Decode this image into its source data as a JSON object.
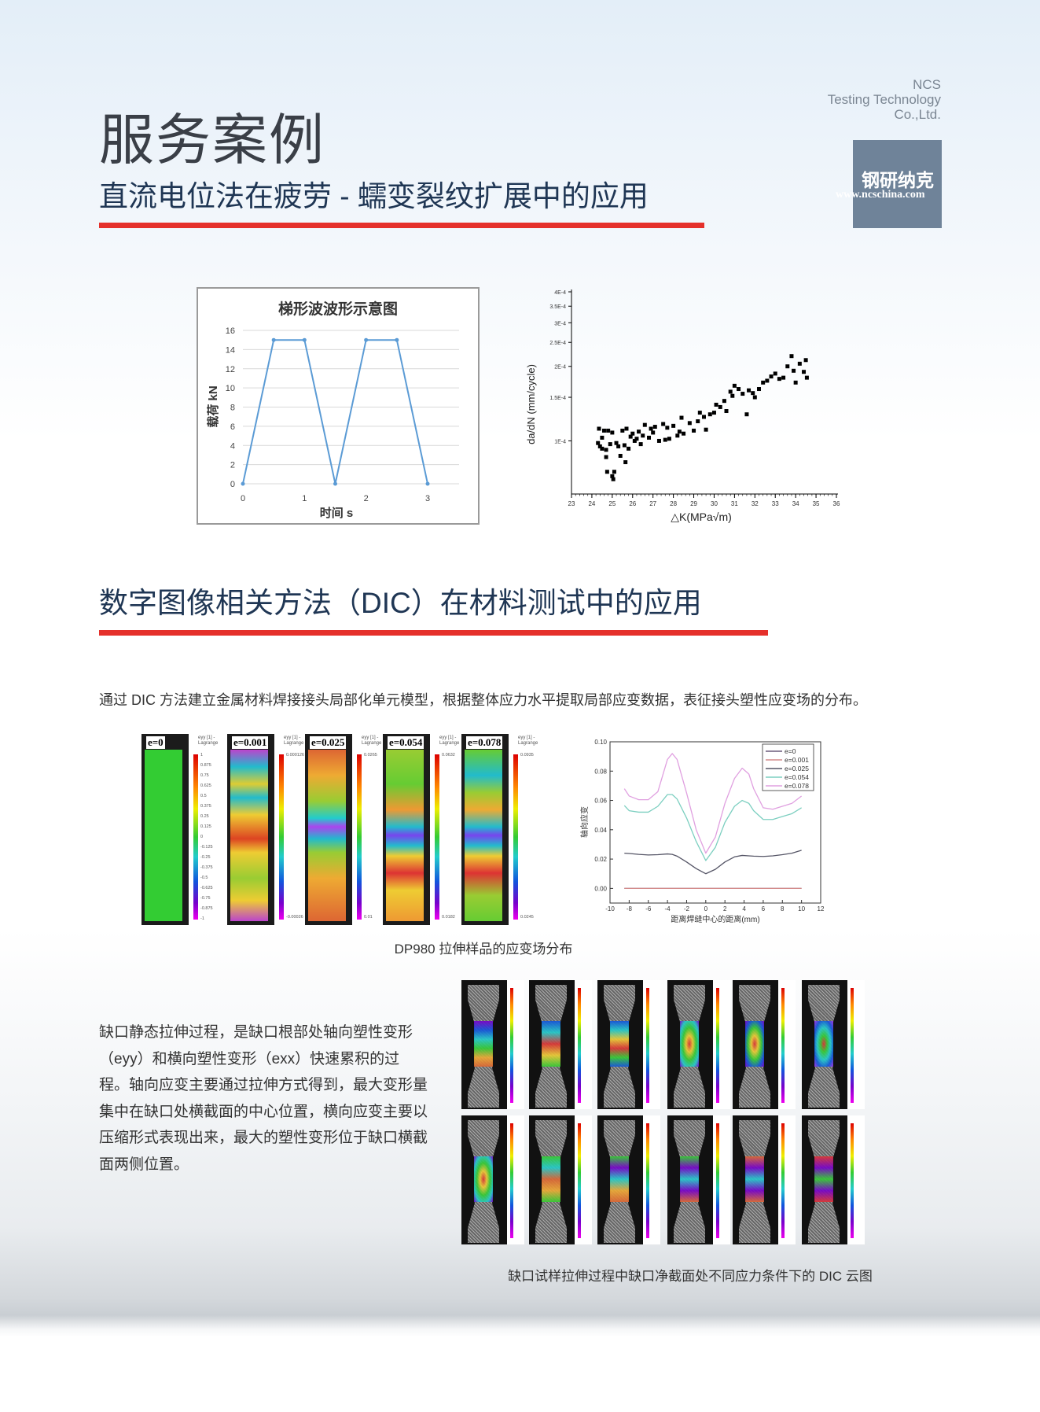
{
  "header": {
    "title": "服务案例",
    "company_lines": [
      "NCS",
      "Testing Technology",
      "Co.,Ltd."
    ],
    "logo": {
      "name_cn": "钢研纳克",
      "url": "www.ncschina.com"
    }
  },
  "section1": {
    "heading": "直流电位法在疲劳 - 蠕变裂纹扩展中的应用"
  },
  "section2": {
    "heading": "数字图像相关方法（DIC）在材料测试中的应用",
    "intro": "通过 DIC 方法建立金属材料焊接接头局部化单元模型，根据整体应力水平提取局部应变数据，表征接头塑性应变场的分布。",
    "dic_caption": "DP980 拉伸样品的应变场分布",
    "dic_panels": [
      {
        "label": "e=0",
        "legend_title": "eyy [1] - Lagrange",
        "legend_ticks": [
          "1",
          "0.875",
          "0.75",
          "0.625",
          "0.5",
          "0.375",
          "0.25",
          "0.125",
          "0",
          "-0.125",
          "-0.25",
          "-0.375",
          "-0.5",
          "-0.625",
          "-0.75",
          "-0.875",
          "-1"
        ]
      },
      {
        "label": "e=0.001",
        "legend_title": "eyy [1] - Lagrange",
        "legend_max": "0.000126",
        "legend_min": "-0.00026"
      },
      {
        "label": "e=0.025",
        "legend_title": "eyy [1] - Lagrange",
        "legend_max": "0.0265",
        "legend_min": "0.01"
      },
      {
        "label": "e=0.054",
        "legend_title": "eyy [1] - Lagrange",
        "legend_max": "0.0632",
        "legend_min": "0.0182"
      },
      {
        "label": "e=0.078",
        "legend_title": "eyy [1] - Lagrange",
        "legend_max": "0.0935",
        "legend_min": "0.0245"
      }
    ],
    "notch_text": "缺口静态拉伸过程，是缺口根部处轴向塑性变形（eyy）和横向塑性变形（exx）快速累积的过程。轴向应变主要通过拉伸方式得到，最大变形量集中在缺口处横截面的中心位置，横向应变主要以压缩形式表现出来，最大的塑性变形位于缺口横截面两侧位置。",
    "notch_caption": "缺口试样拉伸过程中缺口净截面处不同应力条件下的 DIC 云图"
  },
  "chart_data": [
    {
      "type": "line",
      "title": "梯形波波形示意图",
      "xlabel": "时间 s",
      "ylabel": "载荷 kN",
      "x": [
        0,
        0.5,
        1,
        1.5,
        2,
        2.5,
        3
      ],
      "values": [
        0,
        15,
        15,
        0,
        15,
        15,
        0
      ],
      "xlim": [
        0,
        3.4
      ],
      "ylim": [
        0,
        16
      ],
      "xticks": [
        0,
        1,
        2,
        3
      ],
      "yticks": [
        0,
        2,
        4,
        6,
        8,
        10,
        12,
        14,
        16
      ],
      "grid": true,
      "color": "#5b9bd5"
    },
    {
      "type": "scatter",
      "xlabel": "△K(MPa√m)",
      "ylabel": "da/dN (mm/cycle)",
      "xlim": [
        23,
        36
      ],
      "ylim": [
        6.1e-05,
        0.0004
      ],
      "yscale": "log",
      "xticks": [
        23,
        24,
        25,
        26,
        27,
        28,
        29,
        30,
        31,
        32,
        33,
        34,
        35,
        36
      ],
      "yticks": [
        {
          "v": 0.0001,
          "label": "1E-4"
        },
        {
          "v": 0.00015,
          "label": "1.5E-4"
        },
        {
          "v": 0.0002,
          "label": "2E-4"
        },
        {
          "v": 0.00025,
          "label": "2.5E-4"
        },
        {
          "v": 0.0003,
          "label": "3E-4"
        },
        {
          "v": 0.00035,
          "label": "3.5E-4"
        },
        {
          "v": 0.0004,
          "label": "4E-4"
        }
      ],
      "color": "#000000",
      "points": [
        [
          24.3,
          9.8e-05
        ],
        [
          24.35,
          0.000112
        ],
        [
          24.4,
          9.5e-05
        ],
        [
          24.5,
          0.000103
        ],
        [
          24.5,
          9.3e-05
        ],
        [
          24.6,
          0.00011
        ],
        [
          24.7,
          9.2e-05
        ],
        [
          24.7,
          8.6e-05
        ],
        [
          24.75,
          7.5e-05
        ],
        [
          24.8,
          0.00011
        ],
        [
          24.9,
          9.7e-05
        ],
        [
          25.0,
          7.2e-05
        ],
        [
          25.05,
          7e-05
        ],
        [
          25.1,
          7.5e-05
        ],
        [
          25.0,
          0.000108
        ],
        [
          25.2,
          9.8e-05
        ],
        [
          25.3,
          9.5e-05
        ],
        [
          25.4,
          8.7e-05
        ],
        [
          25.5,
          0.00011
        ],
        [
          25.6,
          9.6e-05
        ],
        [
          25.65,
          8.2e-05
        ],
        [
          25.7,
          0.000112
        ],
        [
          25.8,
          9.3e-05
        ],
        [
          25.9,
          0.000104
        ],
        [
          26.0,
          0.000107
        ],
        [
          26.1,
          0.0001
        ],
        [
          26.2,
          0.000102
        ],
        [
          26.3,
          0.000109
        ],
        [
          26.4,
          9.7e-05
        ],
        [
          26.5,
          0.000105
        ],
        [
          26.6,
          0.000116
        ],
        [
          26.8,
          0.000103
        ],
        [
          26.9,
          0.000112
        ],
        [
          27.0,
          0.000108
        ],
        [
          27.1,
          0.000114
        ],
        [
          27.3,
          0.0001
        ],
        [
          27.5,
          0.000117
        ],
        [
          27.6,
          0.000101
        ],
        [
          27.7,
          0.000113
        ],
        [
          27.8,
          0.000102
        ],
        [
          28.0,
          0.000115
        ],
        [
          28.2,
          0.000105
        ],
        [
          28.3,
          0.000109
        ],
        [
          28.4,
          0.000124
        ],
        [
          28.5,
          0.000107
        ],
        [
          28.8,
          0.000118
        ],
        [
          29.0,
          0.00011
        ],
        [
          29.2,
          0.00012
        ],
        [
          29.3,
          0.00013
        ],
        [
          29.5,
          0.000125
        ],
        [
          29.6,
          0.000111
        ],
        [
          29.8,
          0.000128
        ],
        [
          30.0,
          0.00013
        ],
        [
          30.1,
          0.00014
        ],
        [
          30.3,
          0.000137
        ],
        [
          30.5,
          0.000145
        ],
        [
          30.6,
          0.000132
        ],
        [
          30.8,
          0.000158
        ],
        [
          30.9,
          0.000152
        ],
        [
          31.0,
          0.000167
        ],
        [
          31.2,
          0.000162
        ],
        [
          31.4,
          0.000155
        ],
        [
          31.6,
          0.000128
        ],
        [
          31.7,
          0.00016
        ],
        [
          31.9,
          0.000156
        ],
        [
          32.0,
          0.00015
        ],
        [
          32.2,
          0.000162
        ],
        [
          32.4,
          0.000172
        ],
        [
          32.6,
          0.000175
        ],
        [
          32.8,
          0.000182
        ],
        [
          33.0,
          0.000187
        ],
        [
          33.2,
          0.000178
        ],
        [
          33.4,
          0.00018
        ],
        [
          33.6,
          0.0002
        ],
        [
          33.8,
          0.00022
        ],
        [
          33.9,
          0.000192
        ],
        [
          34.0,
          0.000172
        ],
        [
          34.2,
          0.000205
        ],
        [
          34.4,
          0.00019
        ],
        [
          34.5,
          0.000212
        ],
        [
          34.55,
          0.00018
        ]
      ]
    },
    {
      "type": "line",
      "xlabel": "距离焊缝中心的距离(mm)",
      "ylabel": "轴向应变",
      "xlim": [
        -10,
        12
      ],
      "ylim": [
        -0.01,
        0.1
      ],
      "xticks": [
        -10,
        -8,
        -6,
        -4,
        -2,
        0,
        2,
        4,
        6,
        8,
        10,
        12
      ],
      "yticks": [
        {
          "v": 0,
          "label": "0.00"
        },
        {
          "v": 0.02,
          "label": "0.02"
        },
        {
          "v": 0.04,
          "label": "0.04"
        },
        {
          "v": 0.06,
          "label": "0.06"
        },
        {
          "v": 0.08,
          "label": "0.08"
        },
        {
          "v": 0.1,
          "label": "0.10"
        }
      ],
      "legend": "top-right",
      "x": [
        -8.5,
        -8,
        -7,
        -6,
        -5,
        -4,
        -3.5,
        -3,
        -2,
        -1,
        0,
        1,
        2,
        3,
        3.8,
        4.5,
        5,
        6,
        7,
        8,
        9,
        10
      ],
      "series": [
        {
          "name": "e=0",
          "color": "#6b5c7c",
          "values": [
            0,
            0,
            0,
            0,
            0,
            0,
            0,
            0,
            0,
            0,
            0,
            0,
            0,
            0,
            0,
            0,
            0,
            0,
            0,
            0,
            0,
            0
          ]
        },
        {
          "name": "e=0.001",
          "color": "#d48c8c",
          "values": [
            0,
            0,
            0,
            0,
            0,
            0,
            0,
            0,
            0,
            0,
            0,
            0,
            0,
            0,
            0,
            0,
            0,
            0,
            0,
            0,
            0,
            0
          ]
        },
        {
          "name": "e=0.025",
          "color": "#555566",
          "values": [
            0.024,
            0.0238,
            0.0232,
            0.0228,
            0.023,
            0.0235,
            0.0232,
            0.022,
            0.018,
            0.0135,
            0.01,
            0.013,
            0.018,
            0.0215,
            0.0225,
            0.0222,
            0.022,
            0.0218,
            0.0222,
            0.023,
            0.024,
            0.026
          ]
        },
        {
          "name": "e=0.054",
          "color": "#7ccfc0",
          "values": [
            0.0565,
            0.053,
            0.052,
            0.052,
            0.056,
            0.064,
            0.064,
            0.061,
            0.048,
            0.032,
            0.019,
            0.028,
            0.045,
            0.056,
            0.06,
            0.058,
            0.053,
            0.047,
            0.047,
            0.049,
            0.051,
            0.055
          ]
        },
        {
          "name": "e=0.078",
          "color": "#e0a0e0",
          "values": [
            0.068,
            0.063,
            0.0605,
            0.0605,
            0.066,
            0.088,
            0.092,
            0.088,
            0.065,
            0.04,
            0.024,
            0.035,
            0.058,
            0.075,
            0.082,
            0.078,
            0.068,
            0.055,
            0.054,
            0.056,
            0.058,
            0.063
          ]
        }
      ]
    }
  ]
}
